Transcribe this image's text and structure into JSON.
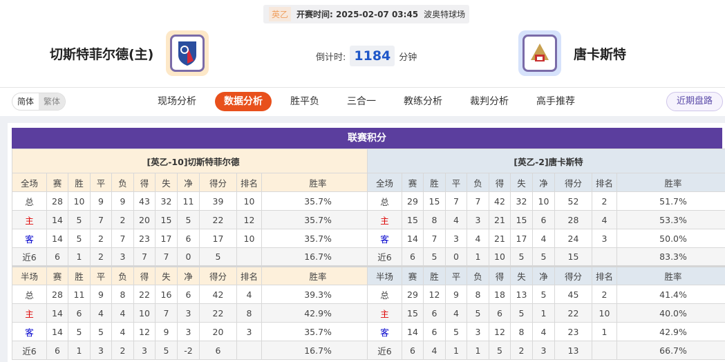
{
  "match": {
    "league": "英乙",
    "kickoff_label": "开赛时间:",
    "kickoff": "2025-02-07 03:45",
    "venue": "波奥特球场"
  },
  "home": {
    "name": "切斯特菲尔德(主)"
  },
  "away": {
    "name": "唐卡斯特"
  },
  "countdown": {
    "label": "倒计时:",
    "value": "1184",
    "unit": "分钟"
  },
  "lang": {
    "simplified": "简体",
    "traditional": "繁体"
  },
  "nav": [
    {
      "label": "现场分析"
    },
    {
      "label": "数据分析",
      "active": true
    },
    {
      "label": "胜平负"
    },
    {
      "label": "三合一"
    },
    {
      "label": "教练分析"
    },
    {
      "label": "裁判分析"
    },
    {
      "label": "高手推荐"
    }
  ],
  "recent_button": "近期盘路",
  "section_title": "联赛积分",
  "columns": [
    "赛",
    "胜",
    "平",
    "负",
    "得",
    "失",
    "净",
    "得分",
    "排名",
    "胜率"
  ],
  "tables": [
    {
      "team_title": "[英乙-10]切斯特菲尔德",
      "full": {
        "label": "全场",
        "rows": [
          [
            "总",
            "28",
            "10",
            "9",
            "9",
            "43",
            "32",
            "11",
            "39",
            "10",
            "35.7%"
          ],
          [
            "主",
            "14",
            "5",
            "7",
            "2",
            "20",
            "15",
            "5",
            "22",
            "12",
            "35.7%"
          ],
          [
            "客",
            "14",
            "5",
            "2",
            "7",
            "23",
            "17",
            "6",
            "17",
            "10",
            "35.7%"
          ],
          [
            "近6",
            "6",
            "1",
            "2",
            "3",
            "7",
            "7",
            "0",
            "5",
            "",
            "16.7%"
          ]
        ]
      },
      "half": {
        "label": "半场",
        "rows": [
          [
            "总",
            "28",
            "11",
            "9",
            "8",
            "22",
            "16",
            "6",
            "42",
            "4",
            "39.3%"
          ],
          [
            "主",
            "14",
            "6",
            "4",
            "4",
            "10",
            "7",
            "3",
            "22",
            "8",
            "42.9%"
          ],
          [
            "客",
            "14",
            "5",
            "5",
            "4",
            "12",
            "9",
            "3",
            "20",
            "3",
            "35.7%"
          ],
          [
            "近6",
            "6",
            "1",
            "3",
            "2",
            "3",
            "5",
            "-2",
            "6",
            "",
            "16.7%"
          ]
        ]
      }
    },
    {
      "team_title": "[英乙-2]唐卡斯特",
      "full": {
        "label": "全场",
        "rows": [
          [
            "总",
            "29",
            "15",
            "7",
            "7",
            "42",
            "32",
            "10",
            "52",
            "2",
            "51.7%"
          ],
          [
            "主",
            "15",
            "8",
            "4",
            "3",
            "21",
            "15",
            "6",
            "28",
            "4",
            "53.3%"
          ],
          [
            "客",
            "14",
            "7",
            "3",
            "4",
            "21",
            "17",
            "4",
            "24",
            "3",
            "50.0%"
          ],
          [
            "近6",
            "6",
            "5",
            "0",
            "1",
            "10",
            "5",
            "5",
            "15",
            "",
            "83.3%"
          ]
        ]
      },
      "half": {
        "label": "半场",
        "rows": [
          [
            "总",
            "29",
            "12",
            "9",
            "8",
            "18",
            "13",
            "5",
            "45",
            "2",
            "41.4%"
          ],
          [
            "主",
            "15",
            "6",
            "4",
            "5",
            "6",
            "5",
            "1",
            "22",
            "10",
            "40.0%"
          ],
          [
            "客",
            "14",
            "6",
            "5",
            "3",
            "12",
            "8",
            "4",
            "23",
            "1",
            "42.9%"
          ],
          [
            "近6",
            "6",
            "4",
            "1",
            "1",
            "5",
            "2",
            "3",
            "13",
            "",
            "66.7%"
          ]
        ]
      }
    }
  ]
}
